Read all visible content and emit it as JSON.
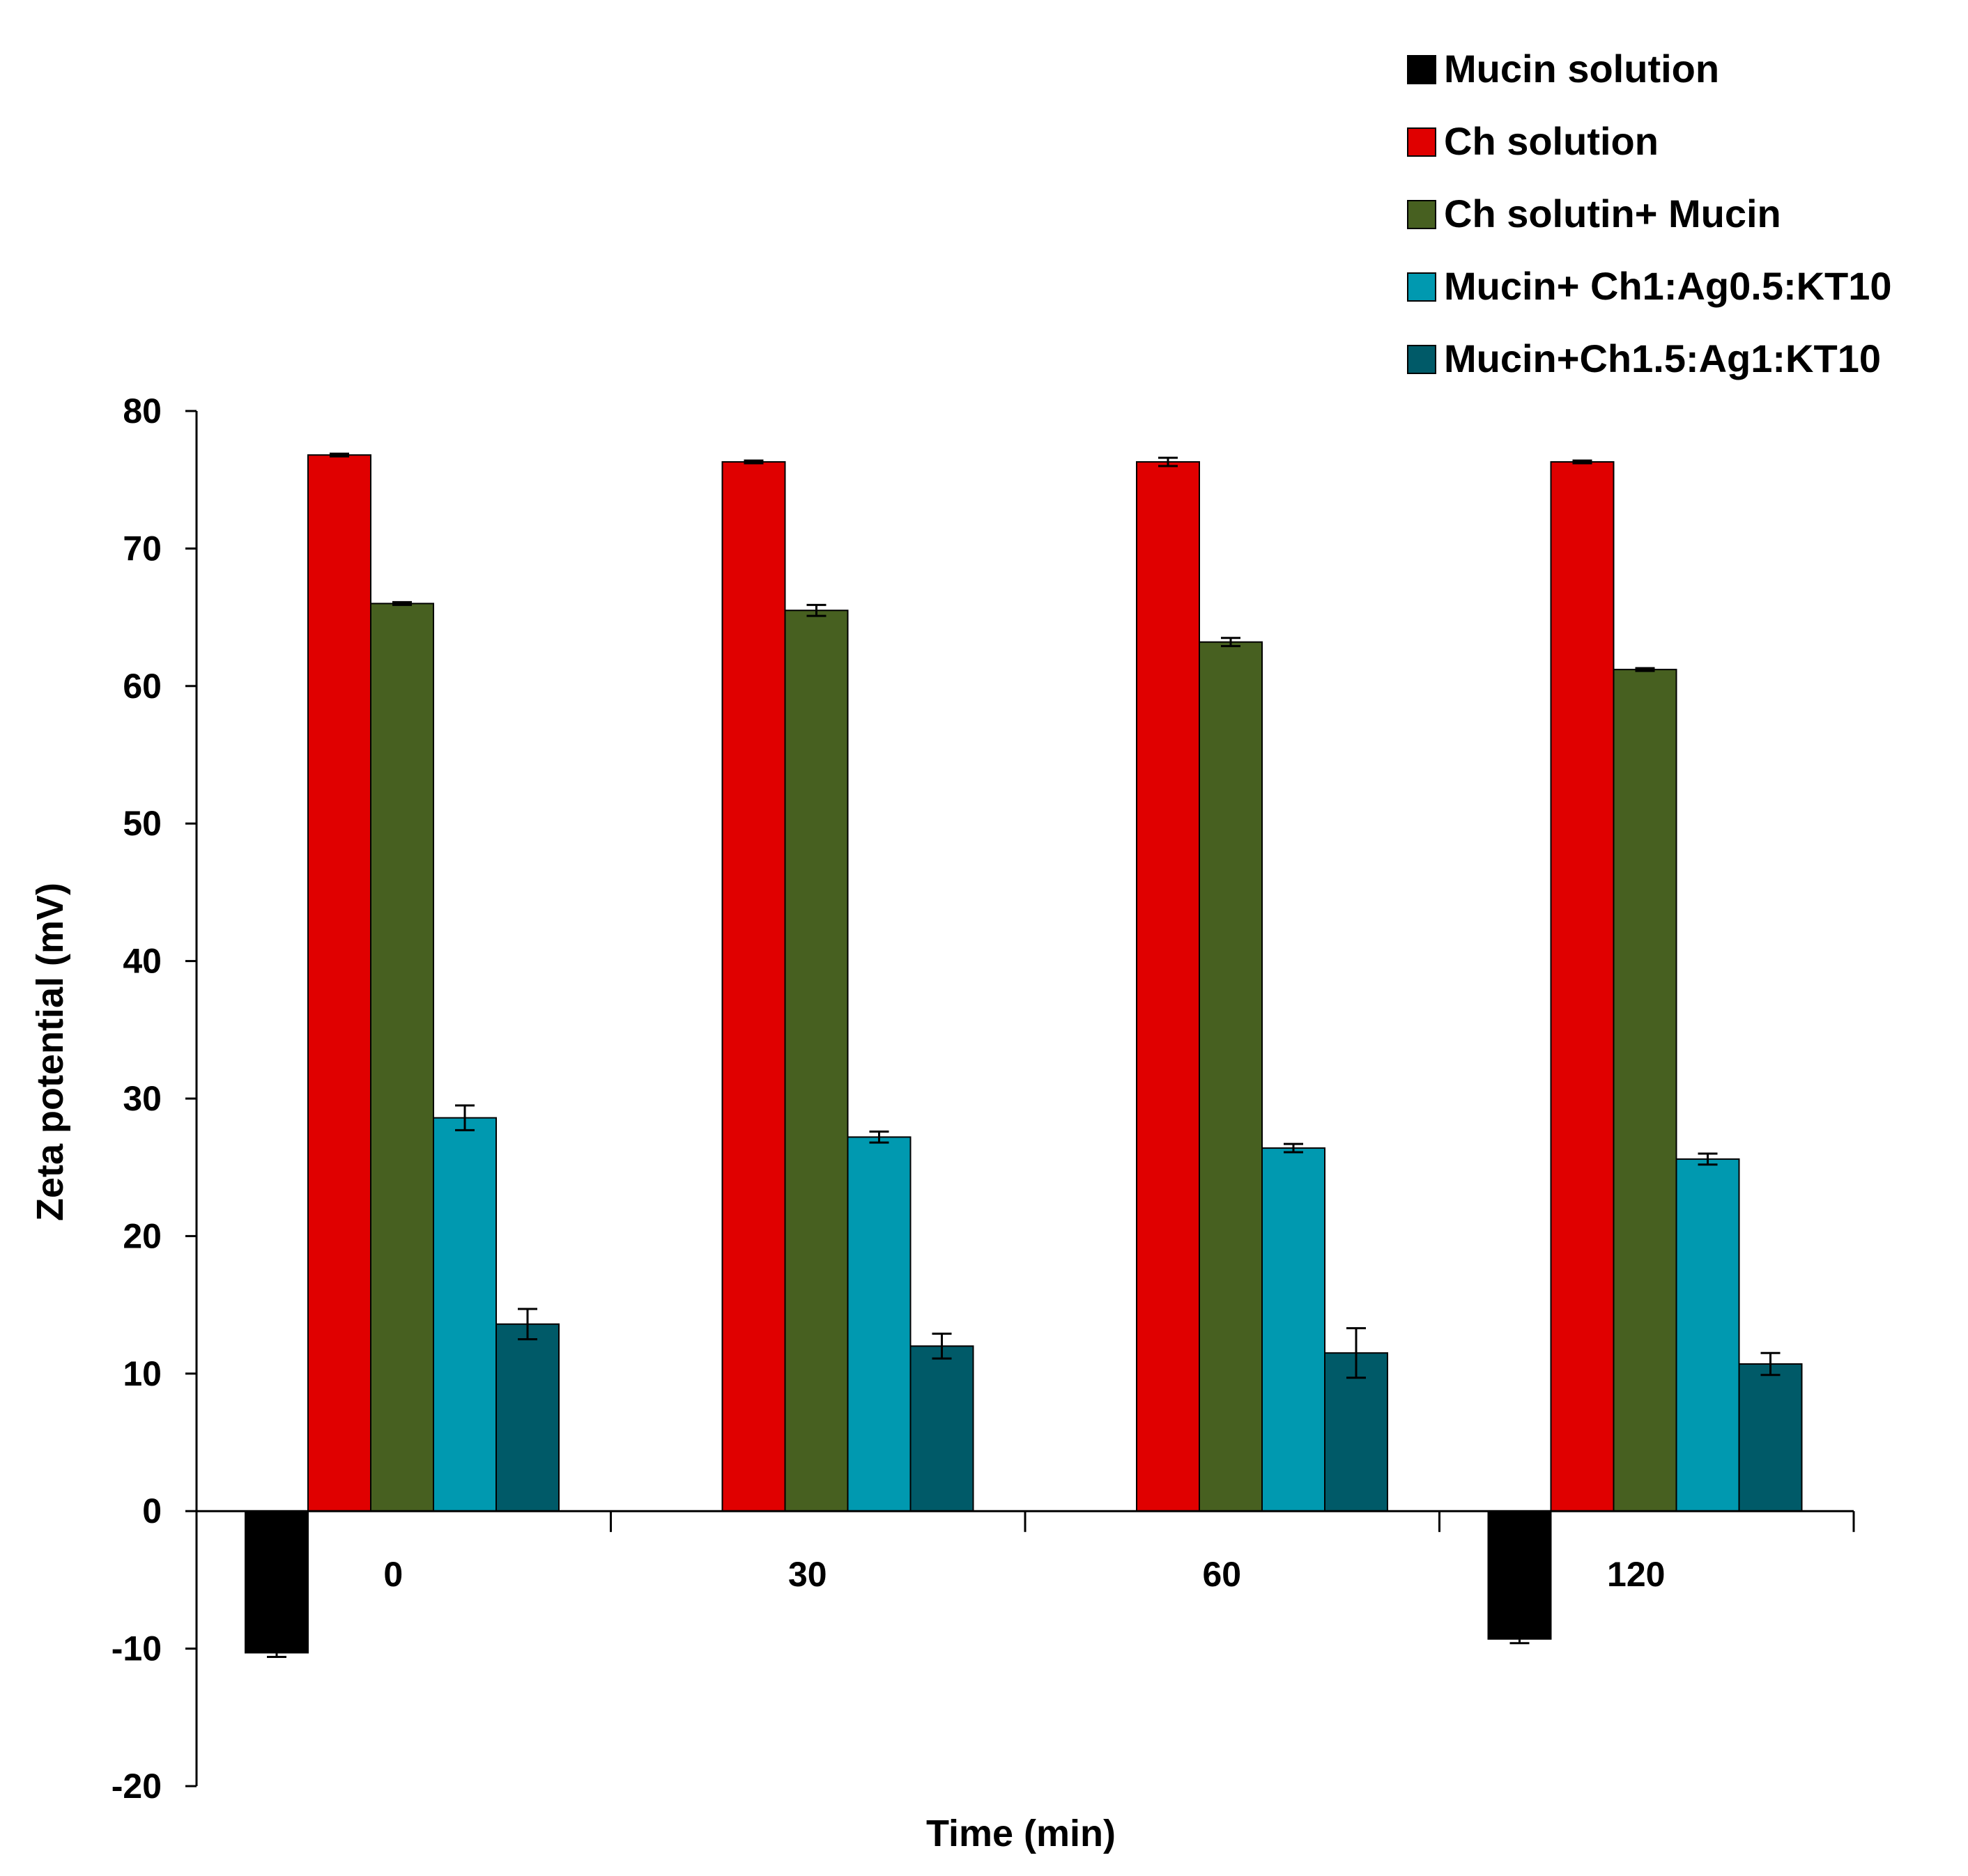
{
  "chart_data": {
    "type": "bar",
    "title": "",
    "xlabel": "Time (min)",
    "ylabel": "Zeta potential (mV)",
    "ylim": [
      -20,
      80
    ],
    "yticks": [
      80,
      70,
      60,
      50,
      40,
      30,
      20,
      10,
      0,
      -10,
      -20
    ],
    "grid": false,
    "legend_position": "top-right",
    "categories": [
      "0",
      "30",
      "60",
      "120"
    ],
    "series": [
      {
        "name": "Mucin solution",
        "color": "#000000",
        "values": [
          -10.3,
          null,
          null,
          -9.3
        ],
        "errors": [
          0.3,
          null,
          null,
          0.3
        ]
      },
      {
        "name": "Ch solution",
        "color": "#E00000",
        "values": [
          76.8,
          76.3,
          76.3,
          76.3
        ],
        "errors": [
          0.1,
          0.1,
          0.3,
          0.1
        ]
      },
      {
        "name": "Ch solutin+ Mucin",
        "color": "#476020",
        "values": [
          66.0,
          65.5,
          63.2,
          61.2
        ],
        "errors": [
          0.1,
          0.4,
          0.3,
          0.1
        ]
      },
      {
        "name": "Mucin+ Ch1:Ag0.5:KT10",
        "color": "#0099B0",
        "values": [
          28.6,
          27.2,
          26.4,
          25.6
        ],
        "errors": [
          0.9,
          0.4,
          0.3,
          0.4
        ]
      },
      {
        "name": "Mucin+Ch1.5:Ag1:KT10",
        "color": "#005A68",
        "values": [
          13.6,
          12.0,
          11.5,
          10.7
        ],
        "errors": [
          1.1,
          0.9,
          1.8,
          0.8
        ]
      }
    ]
  }
}
